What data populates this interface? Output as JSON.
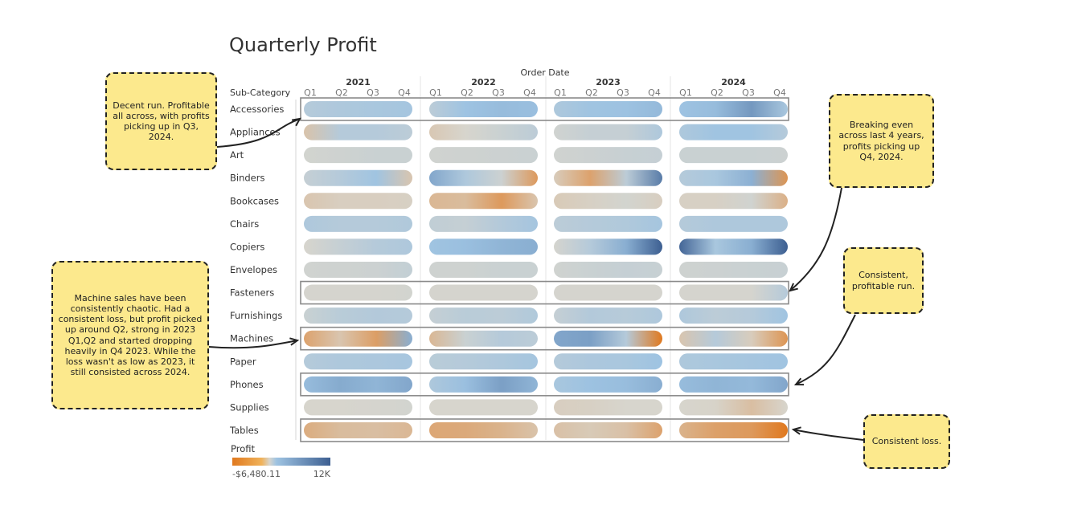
{
  "title": "Quarterly Profit",
  "chart_data": {
    "type": "heatmap",
    "title": "Quarterly Profit",
    "column_header": "Order Date",
    "row_header": "Sub-Category",
    "years": [
      "2021",
      "2022",
      "2023",
      "2024"
    ],
    "quarters": [
      "Q1",
      "Q2",
      "Q3",
      "Q4"
    ],
    "rows": [
      {
        "name": "Accessories",
        "values": [
          1500,
          1800,
          2000,
          2200,
          1200,
          2500,
          3000,
          2800,
          1800,
          2400,
          2600,
          3200,
          2500,
          3000,
          5500,
          2000
        ]
      },
      {
        "name": "Appliances",
        "values": [
          -800,
          1500,
          1500,
          1200,
          -600,
          0,
          600,
          1200,
          300,
          800,
          800,
          1800,
          1800,
          2400,
          2400,
          1500
        ]
      },
      {
        "name": "Art",
        "values": [
          200,
          400,
          600,
          600,
          300,
          400,
          500,
          600,
          300,
          500,
          700,
          800,
          600,
          600,
          600,
          500
        ]
      },
      {
        "name": "Binders",
        "values": [
          800,
          1500,
          2400,
          -700,
          4500,
          1800,
          500,
          -2600,
          -400,
          -2200,
          1200,
          7500,
          1500,
          2000,
          3800,
          -2800
        ]
      },
      {
        "name": "Bookcases",
        "values": [
          -700,
          -300,
          -300,
          -200,
          -1300,
          -1100,
          -2600,
          -700,
          -500,
          -200,
          200,
          -300,
          -200,
          -200,
          300,
          -1600
        ]
      },
      {
        "name": "Chairs",
        "values": [
          1800,
          1500,
          1500,
          1700,
          1000,
          800,
          1600,
          2200,
          1200,
          1500,
          1700,
          2200,
          1500,
          1800,
          1800,
          1800
        ]
      },
      {
        "name": "Copiers",
        "values": [
          0,
          800,
          1500,
          1800,
          2400,
          2800,
          3500,
          4000,
          100,
          1500,
          4000,
          9500,
          9000,
          2000,
          4000,
          9500
        ]
      },
      {
        "name": "Envelopes",
        "values": [
          300,
          400,
          500,
          900,
          400,
          400,
          600,
          600,
          300,
          600,
          800,
          700,
          400,
          500,
          600,
          700
        ]
      },
      {
        "name": "Fasteners",
        "values": [
          100,
          100,
          100,
          200,
          100,
          100,
          100,
          100,
          100,
          100,
          100,
          100,
          100,
          100,
          100,
          1500
        ]
      },
      {
        "name": "Furnishings",
        "values": [
          600,
          1300,
          1600,
          1500,
          800,
          1300,
          1200,
          1700,
          800,
          1600,
          1400,
          1800,
          1800,
          1200,
          1500,
          2400
        ]
      },
      {
        "name": "Machines",
        "values": [
          -2200,
          -700,
          -2400,
          4000,
          -1300,
          600,
          1500,
          1200,
          4500,
          5000,
          1500,
          -6480,
          -700,
          1500,
          -400,
          -2800
        ]
      },
      {
        "name": "Paper",
        "values": [
          1500,
          1800,
          1900,
          2100,
          1300,
          1500,
          1800,
          2200,
          1500,
          1900,
          2000,
          2500,
          1800,
          2000,
          2200,
          2400
        ]
      },
      {
        "name": "Phones",
        "values": [
          3000,
          4200,
          3500,
          4500,
          1800,
          2800,
          5000,
          3500,
          2000,
          2600,
          2900,
          4000,
          3000,
          3500,
          3200,
          4500
        ]
      },
      {
        "name": "Supplies",
        "values": [
          0,
          0,
          100,
          200,
          0,
          0,
          0,
          0,
          -300,
          -200,
          0,
          0,
          0,
          -100,
          -1000,
          0
        ]
      },
      {
        "name": "Tables",
        "values": [
          -1800,
          -1100,
          -1000,
          -1300,
          -2000,
          -1900,
          -1500,
          -800,
          -900,
          -500,
          -900,
          -2200,
          -1500,
          -2300,
          -2600,
          -4500
        ]
      }
    ],
    "color_legend": {
      "title": "Profit",
      "min": -6480.11,
      "max": 12000,
      "min_label": "-$6,480.11",
      "max_label": "12K"
    },
    "colors": {
      "negative": "#e0791f",
      "neutral": "#d7d5cd",
      "positive": "#9ec3e2",
      "strong_positive": "#3d5f91"
    }
  },
  "annotations": [
    {
      "id": "accessories",
      "text": "Decent run. Profitable all across, with profits picking up in Q3, 2024."
    },
    {
      "id": "machines",
      "text": "Machine sales have been consistently chaotic. Had a consistent loss, but profit picked up around Q2, strong in 2023 Q1,Q2 and started dropping heavily in Q4 2023. While the loss wasn't as low as 2023, it still consisted across 2024."
    },
    {
      "id": "fasteners",
      "text": "Breaking even across last 4 years, profits picking up Q4, 2024."
    },
    {
      "id": "phones",
      "text": "Consistent, profitable run."
    },
    {
      "id": "tables",
      "text": "Consistent loss."
    }
  ]
}
